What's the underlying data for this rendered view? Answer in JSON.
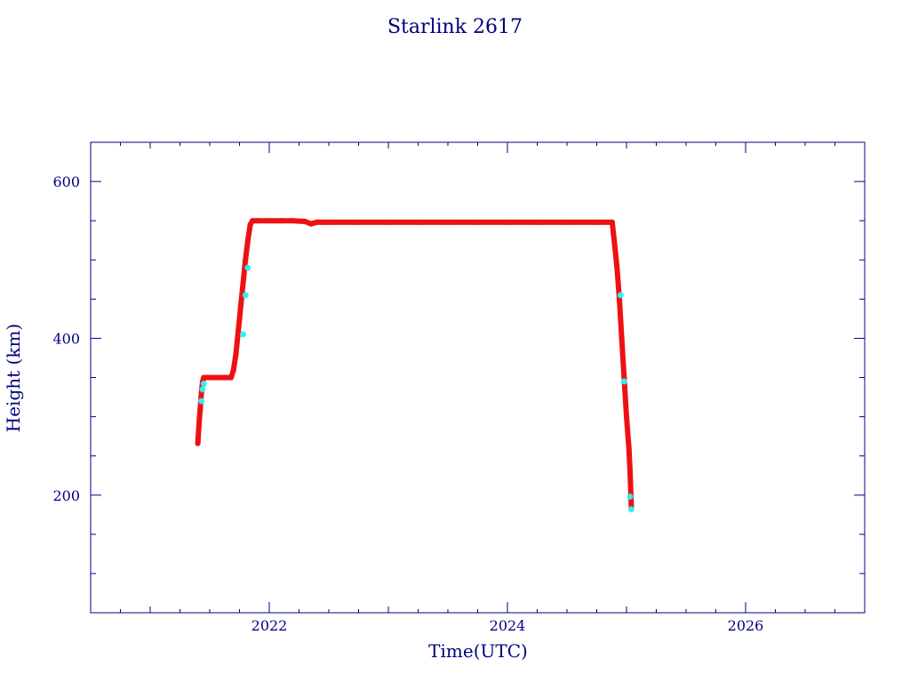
{
  "chart_data": {
    "type": "scatter",
    "title": "Starlink 2617",
    "xlabel": "Time(UTC)",
    "ylabel": "Height (km)",
    "xlim": [
      2020.5,
      2027.0
    ],
    "ylim": [
      50,
      650
    ],
    "x_ticks": [
      {
        "value": 2022,
        "label": "2022"
      },
      {
        "value": 2024,
        "label": "2024"
      },
      {
        "value": 2026,
        "label": "2026"
      }
    ],
    "y_ticks": [
      {
        "value": 200,
        "label": "200"
      },
      {
        "value": 400,
        "label": "400"
      },
      {
        "value": 600,
        "label": "600"
      }
    ],
    "grid": false,
    "legend": "none",
    "colors": {
      "axes": "#000080",
      "text": "#000080",
      "points": "#ee1111",
      "highlight": "#33eeee"
    },
    "series": [
      {
        "color": "#ee1111",
        "x": [
          2021.4,
          2021.41,
          2021.42,
          2021.43,
          2021.44,
          2021.45,
          2021.46,
          2021.47,
          2021.5,
          2021.55,
          2021.6,
          2021.65,
          2021.68,
          2021.7,
          2021.72,
          2021.74,
          2021.76,
          2021.78,
          2021.8,
          2021.82,
          2021.84,
          2021.86,
          2021.9,
          2022.0,
          2022.1,
          2022.2,
          2022.3,
          2022.35,
          2022.4,
          2022.45,
          2022.5,
          2022.75,
          2023.0,
          2023.25,
          2023.5,
          2023.75,
          2024.0,
          2024.25,
          2024.5,
          2024.75,
          2024.88,
          2024.9,
          2024.92,
          2024.94,
          2024.96,
          2024.98,
          2025.0,
          2025.02,
          2025.03,
          2025.04
        ],
        "y": [
          266,
          290,
          310,
          330,
          345,
          350,
          350,
          350,
          350,
          350,
          350,
          350,
          350,
          360,
          380,
          410,
          440,
          470,
          500,
          525,
          545,
          550,
          550,
          550,
          550,
          550,
          549,
          546,
          548,
          548,
          548,
          548,
          548,
          548,
          548,
          548,
          548,
          548,
          548,
          548,
          548,
          520,
          490,
          450,
          400,
          350,
          300,
          260,
          230,
          185
        ]
      },
      {
        "color": "#33eeee",
        "x": [
          2021.43,
          2021.44,
          2021.45,
          2021.78,
          2021.8,
          2021.82,
          2024.95,
          2024.98,
          2025.03,
          2025.04
        ],
        "y": [
          320,
          335,
          342,
          405,
          455,
          490,
          455,
          345,
          198,
          182
        ]
      }
    ]
  }
}
